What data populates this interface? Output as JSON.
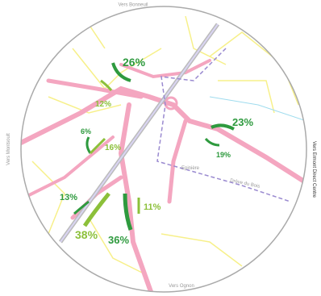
{
  "map": {
    "places": {
      "north": "Vers Bonneuil",
      "west": "Vers Montsoult",
      "east": "Vers Ermont Direct Centre",
      "south": "Vers Ognon",
      "road_1": "Epinière",
      "road_2": "Drève du Bois"
    },
    "flows": [
      {
        "label": "26%"
      },
      {
        "label": "12%"
      },
      {
        "label": "6%"
      },
      {
        "label": "16%"
      },
      {
        "label": "23%"
      },
      {
        "label": "19%"
      },
      {
        "label": "13%"
      },
      {
        "label": "11%"
      },
      {
        "label": "38%"
      },
      {
        "label": "36%"
      }
    ]
  }
}
